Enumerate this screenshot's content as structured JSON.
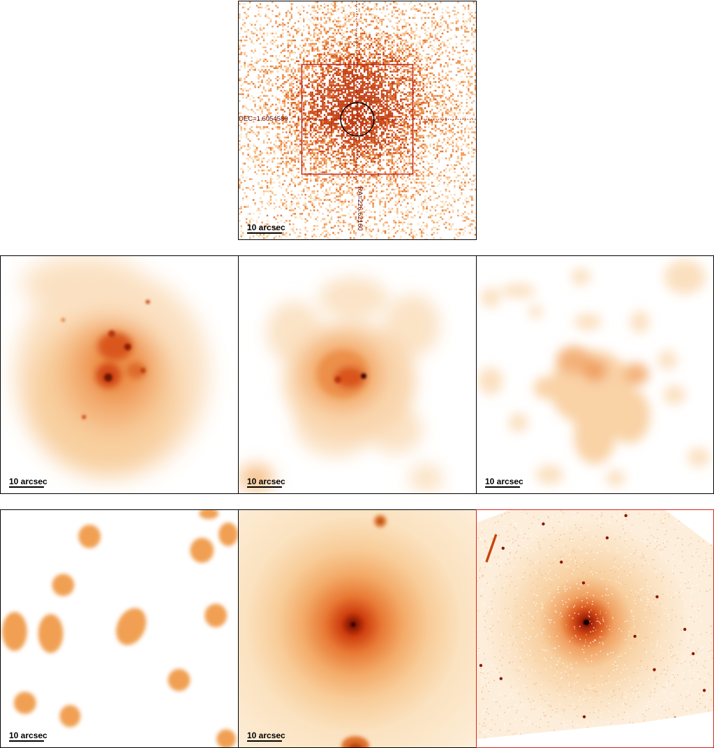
{
  "scale_bar_label": "10 arcsec",
  "top_panel": {
    "dec_label": "DEC=1.6054580",
    "ra_label": "RA=226.62160"
  },
  "panels": [
    {
      "id": "top-xray-counts"
    },
    {
      "id": "row1-panel-1"
    },
    {
      "id": "row1-panel-2"
    },
    {
      "id": "row1-panel-3"
    },
    {
      "id": "row2-panel-1"
    },
    {
      "id": "row2-panel-2"
    },
    {
      "id": "row2-panel-3-red-border"
    }
  ],
  "colors": {
    "frame": "#000000",
    "highlight_frame": "#cc2a1e",
    "colormap_low": "#fde9cf",
    "colormap_mid": "#ef9a4c",
    "colormap_high": "#c8320a",
    "colormap_peak": "#1a0000"
  }
}
